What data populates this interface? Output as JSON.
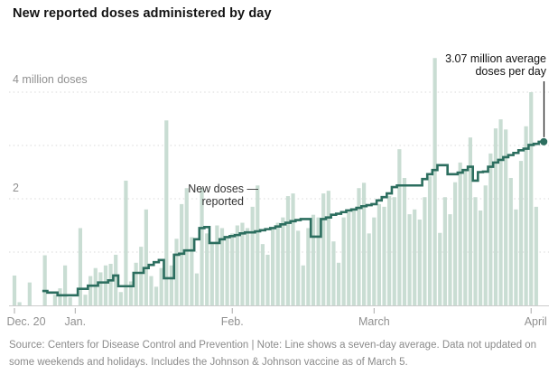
{
  "title": "New reported doses administered by day",
  "y_axis": {
    "top_label": "4 million doses",
    "mid_label": "2",
    "gridline_values": [
      1,
      2,
      3,
      4
    ],
    "unit": "million doses",
    "max": 4
  },
  "x_axis": {
    "ticks": [
      {
        "label": "Dec. 20",
        "day": 0,
        "label_dx": 13
      },
      {
        "label": "Jan.",
        "day": 12,
        "label_dx": 0
      },
      {
        "label": "Feb.",
        "day": 43,
        "label_dx": 0
      },
      {
        "label": "March",
        "day": 71,
        "label_dx": 0
      },
      {
        "label": "April",
        "day": 102,
        "label_dx": 5
      }
    ]
  },
  "annotations": {
    "avg_line1": "3.07 million average",
    "avg_line2": "doses per day",
    "avg_value": "3.07",
    "new_doses_line1": "New doses —",
    "new_doses_line2": "reported"
  },
  "source_note": "Source: Centers for Disease Control and Prevention | Note: Line shows a seven-day average. Data not updated on some weekends and holidays. Includes the Johnson & Johnson vaccine as of March 5.",
  "colors": {
    "bar": "#c9ddd3",
    "avg_line": "#2c6e5f",
    "end_dot": "#2c6e5f",
    "grid": "#d9d9d9",
    "baseline": "#cccccc",
    "tick": "#aaaaaa",
    "axis_text": "#909090",
    "annotation_pointer": "#222222",
    "title_text": "#121212"
  },
  "chart_data": {
    "type": "bar+line",
    "title": "New reported doses administered by day",
    "start_date": "Dec. 20, 2020",
    "end_date": "Apr. 3, 2021",
    "ylabel": "million doses",
    "ylim": [
      0,
      4.8
    ],
    "grid": "dashed horizontal at 1,2,3,4 million",
    "legend": "bars = new doses reported each day; line = seven-day average",
    "bar_series_name": "New doses reported",
    "line_series_name": "Seven-day average",
    "final_average_label": "3.07 million average doses per day",
    "bars_million": [
      0.56,
      0.06,
      0.0,
      0.43,
      0.0,
      0.0,
      0.94,
      0.0,
      0.2,
      0.32,
      0.75,
      0.15,
      0.0,
      1.45,
      0.2,
      0.55,
      0.7,
      0.62,
      0.75,
      0.78,
      0.95,
      0.25,
      2.34,
      0.45,
      0.8,
      1.1,
      1.8,
      0.55,
      0.35,
      0.7,
      3.47,
      0.75,
      1.25,
      1.9,
      2.2,
      1.28,
      0.6,
      2.2,
      1.35,
      1.15,
      1.5,
      1.45,
      1.3,
      1.35,
      1.5,
      1.55,
      1.45,
      1.85,
      2.25,
      1.15,
      0.95,
      1.45,
      1.55,
      1.65,
      2.05,
      2.1,
      1.4,
      0.75,
      1.45,
      1.7,
      1.65,
      2.1,
      2.15,
      1.2,
      0.8,
      1.65,
      1.75,
      1.8,
      2.2,
      2.3,
      1.35,
      1.65,
      1.9,
      1.85,
      2.05,
      2.03,
      2.93,
      2.39,
      1.71,
      1.8,
      1.61,
      2.03,
      2.42,
      4.64,
      1.36,
      2.03,
      1.71,
      2.31,
      2.68,
      2.56,
      3.15,
      2.03,
      1.78,
      2.25,
      2.85,
      3.32,
      3.49,
      3.3,
      2.39,
      1.8,
      2.71,
      3.36,
      4.0,
      1.85,
      0.0
    ],
    "seven_day_avg_million": [
      null,
      null,
      null,
      null,
      null,
      null,
      0.27,
      0.24,
      0.24,
      0.19,
      0.19,
      0.19,
      0.19,
      0.31,
      0.31,
      0.37,
      0.37,
      0.43,
      0.43,
      0.47,
      0.56,
      0.36,
      0.36,
      0.36,
      0.61,
      0.61,
      0.7,
      0.76,
      0.81,
      0.85,
      0.51,
      0.51,
      0.95,
      0.97,
      1.03,
      1.03,
      1.24,
      1.45,
      1.47,
      1.17,
      1.17,
      1.24,
      1.28,
      1.3,
      1.32,
      1.35,
      1.37,
      1.37,
      1.39,
      1.41,
      1.43,
      1.45,
      1.48,
      1.52,
      1.55,
      1.58,
      1.6,
      1.62,
      1.62,
      1.29,
      1.29,
      1.62,
      1.65,
      1.7,
      1.72,
      1.75,
      1.78,
      1.8,
      1.83,
      1.86,
      1.88,
      1.9,
      1.97,
      2.03,
      2.1,
      2.22,
      2.25,
      2.25,
      2.25,
      2.25,
      2.25,
      2.37,
      2.46,
      2.54,
      2.63,
      2.63,
      2.46,
      2.46,
      2.49,
      2.54,
      2.6,
      2.34,
      2.5,
      2.51,
      2.6,
      2.68,
      2.73,
      2.78,
      2.82,
      2.86,
      2.91,
      2.94,
      3.01,
      3.03,
      3.07
    ]
  }
}
